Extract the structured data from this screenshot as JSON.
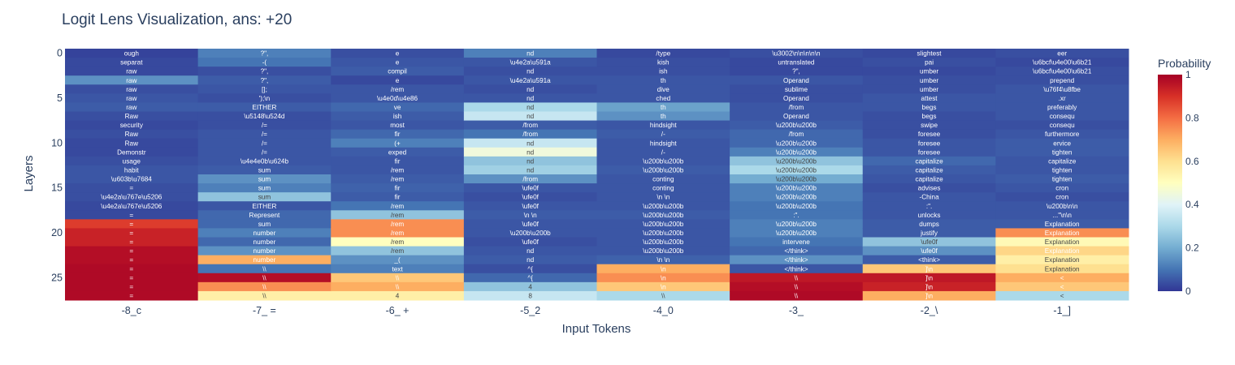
{
  "chart_data": {
    "type": "heatmap",
    "title": "Logit Lens Visualization, ans: +20",
    "xlabel": "Input Tokens",
    "ylabel": "Layers",
    "x_categories": [
      "-8_c",
      "-7_ =",
      "-6_ +",
      "-5_2",
      "-4_0",
      "-3_",
      "-2_\\",
      "-1_]"
    ],
    "y_ticks": [
      0,
      5,
      10,
      15,
      20,
      25
    ],
    "y_range": [
      0,
      27
    ],
    "colorbar": {
      "title": "Probability",
      "ticks": [
        0,
        0.2,
        0.4,
        0.6,
        0.8,
        1
      ],
      "range": [
        0,
        1
      ],
      "colorscale": "RdYlBu reversed"
    },
    "columns": [
      {
        "token": "-8_c",
        "labels": [
          "ough",
          "separat",
          "raw",
          "raw",
          "raw",
          "raw",
          "raw",
          "Raw",
          "security",
          "Raw",
          "Raw",
          "Demonstr",
          "usage",
          "habit",
          "\\u603b\\u7684",
          "=",
          "\\u4e2a\\u767e\\u5206",
          "\\u4e2a\\u767e\\u5206",
          "=",
          "=",
          "=",
          "=",
          "=",
          "=",
          "=",
          "=",
          "=",
          "="
        ],
        "probs": [
          0.02,
          0.03,
          0.03,
          0.15,
          0.04,
          0.05,
          0.06,
          0.04,
          0.03,
          0.04,
          0.03,
          0.03,
          0.04,
          0.05,
          0.05,
          0.04,
          0.04,
          0.03,
          0.03,
          0.88,
          0.93,
          0.93,
          0.97,
          0.97,
          0.98,
          0.98,
          0.98,
          0.98
        ]
      },
      {
        "token": "-7_ =",
        "labels": [
          "?\",",
          "-(",
          "?\",",
          "?\",",
          "[];",
          "');\\n",
          "EITHER",
          "\\u5148\\u524d",
          "/=",
          "/=",
          "/=",
          "/=",
          "\\u4e4e0b\\u624b",
          "sum",
          "sum",
          "sum",
          "sum",
          "EITHER",
          "Represent",
          "sum",
          "number",
          "number",
          "number",
          "number",
          "\\\\",
          "\\\\",
          "\\\\",
          "\\\\"
        ],
        "probs": [
          0.12,
          0.1,
          0.04,
          0.06,
          0.05,
          0.04,
          0.06,
          0.04,
          0.04,
          0.05,
          0.05,
          0.05,
          0.05,
          0.06,
          0.15,
          0.12,
          0.25,
          0.05,
          0.08,
          0.08,
          0.12,
          0.08,
          0.15,
          0.7,
          0.1,
          0.97,
          0.75,
          0.55
        ]
      },
      {
        "token": "-6_ +",
        "labels": [
          "e",
          "e",
          "compil",
          "e",
          "/rem",
          "\\u4e0d\\u4e86",
          "ve",
          "ish",
          "most",
          "fir",
          "(+",
          "exped",
          "fir",
          "/rem",
          "/rem",
          "fir",
          "fir",
          "/rem",
          "/rem",
          "/rem",
          "/rem",
          "/rem",
          "/rem",
          "_(",
          "text",
          "\\\\",
          "\\\\",
          "4"
        ],
        "probs": [
          0.04,
          0.05,
          0.06,
          0.03,
          0.05,
          0.05,
          0.08,
          0.06,
          0.05,
          0.08,
          0.12,
          0.06,
          0.05,
          0.05,
          0.06,
          0.07,
          0.06,
          0.1,
          0.25,
          0.75,
          0.75,
          0.5,
          0.25,
          0.15,
          0.12,
          0.65,
          0.7,
          0.55
        ]
      },
      {
        "token": "-5_2",
        "labels": [
          "nd",
          "\\u4e2a\\u591a",
          "nd",
          "\\u4e2a\\u591a",
          "nd",
          "nd",
          "nd",
          "nd",
          "/from",
          "/from",
          "nd",
          "nd",
          "nd",
          "nd",
          "/from",
          "\\ufe0f",
          "\\ufe0f",
          "\\ufe0f",
          "\\n    \\n",
          "\\ufe0f",
          "\\u200b\\u200b",
          "\\ufe0f",
          "nd",
          "nd",
          "^{",
          "^{",
          "4",
          "8"
        ],
        "probs": [
          0.12,
          0.05,
          0.04,
          0.05,
          0.04,
          0.05,
          0.3,
          0.35,
          0.06,
          0.1,
          0.35,
          0.45,
          0.25,
          0.28,
          0.15,
          0.05,
          0.04,
          0.05,
          0.06,
          0.05,
          0.05,
          0.04,
          0.05,
          0.06,
          0.04,
          0.08,
          0.25,
          0.35
        ]
      },
      {
        "token": "-4_0",
        "labels": [
          "/type",
          "kish",
          "ish",
          "th",
          "dive",
          "ched",
          "th",
          "th",
          "hindsight",
          "/-",
          "hindsight",
          "/-",
          "\\u200b\\u200b",
          "\\u200b\\u200b",
          "conting",
          "conting",
          "\\n      \\n",
          "\\u200b\\u200b",
          "\\u200b\\u200b",
          "\\u200b\\u200b",
          "\\u200b\\u200b",
          "\\u200b\\u200b",
          "\\u200b\\u200b",
          "\\n    \\n",
          "\\n",
          "\\n",
          "\\n",
          "\\\\"
        ],
        "probs": [
          0.03,
          0.04,
          0.04,
          0.05,
          0.05,
          0.05,
          0.18,
          0.15,
          0.05,
          0.06,
          0.05,
          0.05,
          0.05,
          0.06,
          0.05,
          0.05,
          0.05,
          0.05,
          0.06,
          0.05,
          0.05,
          0.05,
          0.05,
          0.07,
          0.7,
          0.75,
          0.65,
          0.3
        ]
      },
      {
        "token": "-3_",
        "labels": [
          "\\u3002\\n\\n\\n\\n\\n",
          "untranslated",
          "?\",",
          "Operand",
          "sublime",
          "Operand",
          "/from",
          "Operand",
          "\\u200b\\u200b",
          "/from",
          "\\u200b\\u200b",
          "\\u200b\\u200b",
          "\\u200b\\u200b",
          "\\u200b\\u200b",
          "\\u200b\\u200b",
          "\\u200b\\u200b",
          "\\u200b\\u200b",
          "\\u200b\\u200b",
          ":\".",
          "\\u200b\\u200b",
          "\\u200b\\u200b",
          "intervene",
          "</think>",
          "</think>",
          "</think>",
          "\\\\",
          "\\\\",
          "\\\\"
        ],
        "probs": [
          0.04,
          0.03,
          0.03,
          0.05,
          0.04,
          0.04,
          0.05,
          0.05,
          0.06,
          0.08,
          0.08,
          0.12,
          0.25,
          0.3,
          0.2,
          0.12,
          0.12,
          0.1,
          0.1,
          0.12,
          0.12,
          0.1,
          0.08,
          0.15,
          0.05,
          0.95,
          0.97,
          0.98
        ]
      },
      {
        "token": "-2_\\",
        "labels": [
          "slightest",
          "pai",
          "umber",
          "umber",
          "umber",
          "attest",
          "begs",
          "begs",
          "swipe",
          "foresee",
          "foresee",
          "foresee",
          "capitalize",
          "capitalize",
          "capitalize",
          "advises",
          "-China",
          ":\".",
          "unlocks",
          "dumps",
          "justify",
          "\\ufe0f",
          "\\ufe0f",
          "<think>",
          "]\\n",
          "]\\n",
          "]\\n",
          "]\\n"
        ],
        "probs": [
          0.03,
          0.04,
          0.03,
          0.04,
          0.04,
          0.05,
          0.05,
          0.04,
          0.04,
          0.04,
          0.05,
          0.05,
          0.08,
          0.06,
          0.05,
          0.04,
          0.05,
          0.05,
          0.05,
          0.06,
          0.06,
          0.25,
          0.15,
          0.06,
          0.65,
          0.95,
          0.93,
          0.7
        ]
      },
      {
        "token": "-1_]",
        "labels": [
          "eer",
          "\\u6bcf\\u4e00\\u6b21",
          "\\u6bcf\\u4e00\\u6b21",
          "prepend",
          "\\u76f4\\u8fbe",
          ".xr",
          "preferably",
          "consequ",
          "consequ",
          "furthermore",
          "ervice",
          "tighten",
          "capitalize",
          "tighten",
          "tighten",
          "cron",
          "cron",
          "\\u200b\\n\\n",
          "...\"\\n\\n",
          "Explanation",
          "Explanation",
          "Explanation",
          "Explanation",
          "Explanation",
          "Explanation",
          "<",
          "<",
          "<"
        ],
        "probs": [
          0.04,
          0.03,
          0.04,
          0.04,
          0.05,
          0.05,
          0.05,
          0.05,
          0.04,
          0.05,
          0.06,
          0.06,
          0.05,
          0.05,
          0.06,
          0.05,
          0.04,
          0.05,
          0.05,
          0.06,
          0.75,
          0.52,
          0.62,
          0.55,
          0.6,
          0.7,
          0.65,
          0.3
        ]
      }
    ]
  }
}
